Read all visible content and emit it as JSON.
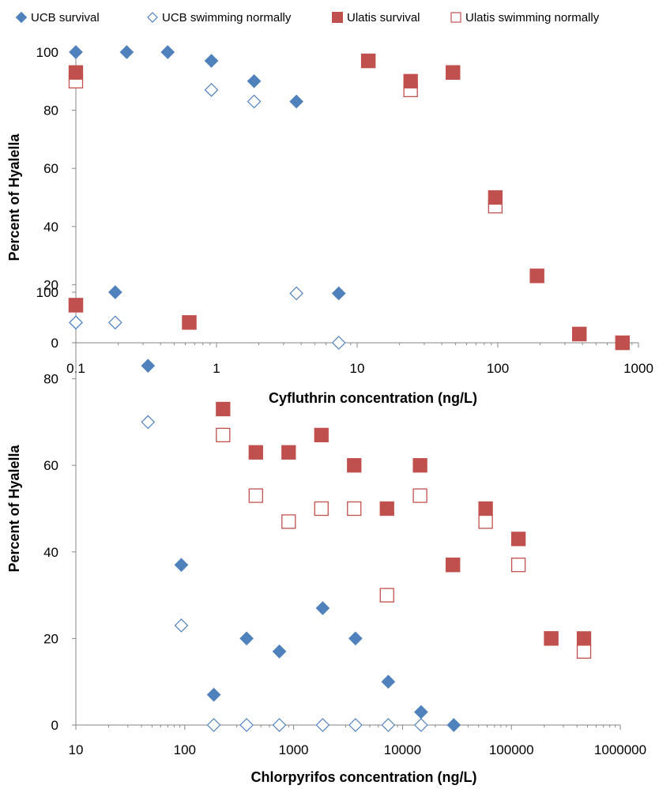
{
  "legend": {
    "items": [
      {
        "label": "UCB survival",
        "marker": "diamond",
        "fill": "#4f81bd",
        "stroke": "#4f81bd"
      },
      {
        "label": "UCB swimming normally",
        "marker": "diamond",
        "fill": "#ffffff",
        "stroke": "#4f81bd"
      },
      {
        "label": "Ulatis survival",
        "marker": "square",
        "fill": "#c0504d",
        "stroke": "#c0504d"
      },
      {
        "label": "Ulatis swimming normally",
        "marker": "square",
        "fill": "#ffffff",
        "stroke": "#c0504d"
      }
    ]
  },
  "chart_data": [
    {
      "type": "scatter",
      "xscale": "log",
      "xlabel": "Cyfluthrin concentration (ng/L)",
      "ylabel": "Percent of Hyalella",
      "xlim": [
        0.1,
        1000
      ],
      "ylim": [
        0,
        100
      ],
      "xticks": [
        "0.1",
        "1",
        "10",
        "100",
        "1000"
      ],
      "yticks": [
        "0",
        "20",
        "40",
        "60",
        "80",
        "100"
      ],
      "grid": false,
      "series": [
        {
          "name": "UCB survival",
          "marker": "diamond",
          "fill": "#4f81bd",
          "stroke": "#4f81bd",
          "points": [
            [
              0.1,
              100
            ],
            [
              0.23,
              100
            ],
            [
              0.45,
              100
            ],
            [
              0.92,
              97
            ],
            [
              1.85,
              90
            ],
            [
              3.7,
              83
            ],
            [
              7.4,
              17
            ]
          ]
        },
        {
          "name": "UCB swimming normally",
          "marker": "diamond",
          "fill": "#ffffff",
          "stroke": "#4f81bd",
          "points": [
            [
              0.92,
              87
            ],
            [
              1.85,
              83
            ],
            [
              3.7,
              17
            ],
            [
              7.4,
              0
            ]
          ]
        },
        {
          "name": "Ulatis swimming normally",
          "marker": "square",
          "fill": "#ffffff",
          "stroke": "#c0504d",
          "points": [
            [
              0.1,
              90
            ],
            [
              12,
              97
            ],
            [
              24,
              87
            ],
            [
              48,
              93
            ],
            [
              96,
              47
            ],
            [
              190,
              23
            ],
            [
              380,
              3
            ],
            [
              770,
              0
            ]
          ]
        },
        {
          "name": "Ulatis survival",
          "marker": "square",
          "fill": "#c0504d",
          "stroke": "#c0504d",
          "points": [
            [
              0.1,
              93
            ],
            [
              12,
              97
            ],
            [
              24,
              90
            ],
            [
              48,
              93
            ],
            [
              96,
              50
            ],
            [
              190,
              23
            ],
            [
              380,
              3
            ],
            [
              770,
              0
            ]
          ]
        }
      ]
    },
    {
      "type": "scatter",
      "xscale": "log",
      "xlabel": "Chlorpyrifos concentration (ng/L)",
      "ylabel": "Percent of Hyalella",
      "xlim": [
        10,
        1000000
      ],
      "ylim": [
        0,
        100
      ],
      "xticks": [
        "10",
        "100",
        "1000",
        "10000",
        "100000",
        "1000000"
      ],
      "yticks": [
        "0",
        "20",
        "40",
        "60",
        "80",
        "100"
      ],
      "grid": false,
      "series": [
        {
          "name": "UCB survival",
          "marker": "diamond",
          "fill": "#4f81bd",
          "stroke": "#4f81bd",
          "points": [
            [
              10,
              93
            ],
            [
              23,
              100
            ],
            [
              46,
              83
            ],
            [
              93,
              37
            ],
            [
              185,
              7
            ],
            [
              370,
              20
            ],
            [
              740,
              17
            ],
            [
              1850,
              27
            ],
            [
              3700,
              20
            ],
            [
              7400,
              10
            ],
            [
              14800,
              3
            ],
            [
              29600,
              0
            ]
          ]
        },
        {
          "name": "UCB swimming normally",
          "marker": "diamond",
          "fill": "#ffffff",
          "stroke": "#4f81bd",
          "points": [
            [
              10,
              93
            ],
            [
              23,
              93
            ],
            [
              46,
              70
            ],
            [
              93,
              23
            ],
            [
              185,
              0
            ],
            [
              370,
              0
            ],
            [
              740,
              0
            ],
            [
              1850,
              0
            ],
            [
              3700,
              0
            ],
            [
              7400,
              0
            ],
            [
              14800,
              0
            ]
          ]
        },
        {
          "name": "Ulatis swimming normally",
          "marker": "square",
          "fill": "#ffffff",
          "stroke": "#c0504d",
          "points": [
            [
              10,
              97
            ],
            [
              110,
              93
            ],
            [
              225,
              67
            ],
            [
              450,
              53
            ],
            [
              900,
              47
            ],
            [
              1800,
              50
            ],
            [
              3600,
              50
            ],
            [
              7200,
              30
            ],
            [
              14500,
              53
            ],
            [
              29000,
              37
            ],
            [
              58000,
              47
            ],
            [
              116000,
              37
            ],
            [
              232000,
              20
            ],
            [
              464000,
              17
            ]
          ]
        },
        {
          "name": "Ulatis survival",
          "marker": "square",
          "fill": "#c0504d",
          "stroke": "#c0504d",
          "points": [
            [
              10,
              97
            ],
            [
              110,
              93
            ],
            [
              225,
              73
            ],
            [
              450,
              63
            ],
            [
              900,
              63
            ],
            [
              1800,
              67
            ],
            [
              3600,
              60
            ],
            [
              7200,
              50
            ],
            [
              14500,
              60
            ],
            [
              29000,
              37
            ],
            [
              58000,
              50
            ],
            [
              116000,
              43
            ],
            [
              232000,
              20
            ],
            [
              464000,
              20
            ]
          ]
        }
      ]
    }
  ]
}
